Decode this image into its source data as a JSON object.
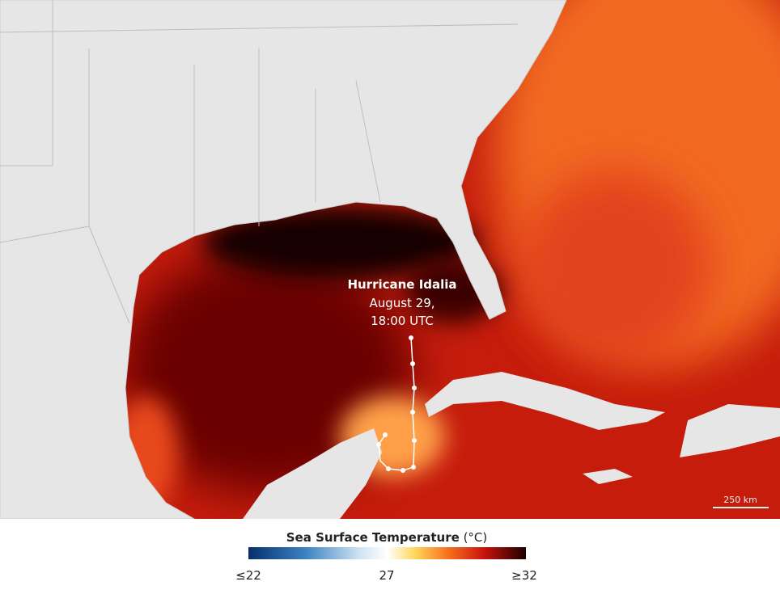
{
  "map": {
    "annotation": {
      "name": "Hurricane Idalia",
      "date": "August 29,",
      "time": "18:00 UTC"
    },
    "scale_bar": "250 km"
  },
  "legend": {
    "title": "Sea Surface Temperature",
    "unit": "(°C)",
    "ticks": [
      "≤22",
      "27",
      "≥32"
    ]
  }
}
